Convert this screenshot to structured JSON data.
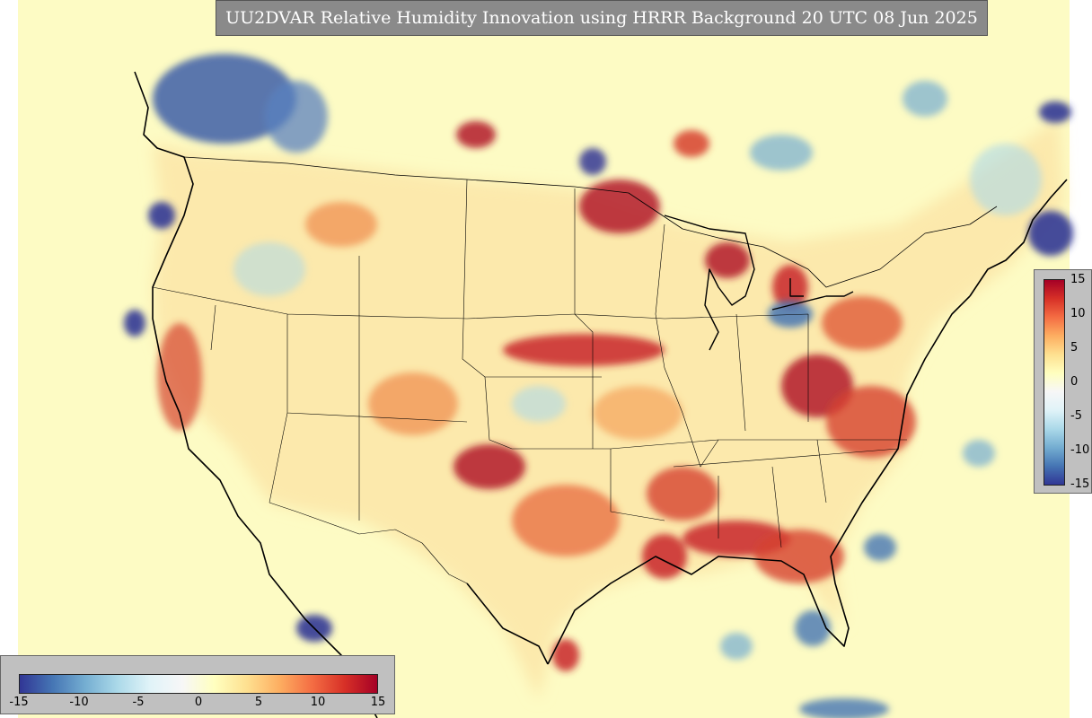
{
  "title": "UU2DVAR Relative Humidity Innovation using HRRR Background 20 UTC 08 Jun 2025",
  "colorbar_right": {
    "ticks": [
      "15",
      "10",
      "5",
      "0",
      "-5",
      "-10",
      "-15"
    ]
  },
  "colorbar_bottom": {
    "ticks": [
      "-15",
      "-10",
      "-5",
      "0",
      "5",
      "10",
      "15"
    ]
  },
  "colormap": [
    "#313695",
    "#4575b4",
    "#74add1",
    "#abd9e9",
    "#e0f3f8",
    "#f7f7f7",
    "#ffffbf",
    "#fee090",
    "#fdae61",
    "#f46d43",
    "#d73027",
    "#a50026"
  ],
  "background_color": "#fdfbc4"
}
